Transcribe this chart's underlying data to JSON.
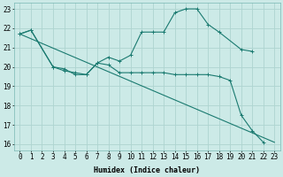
{
  "xlabel": "Humidex (Indice chaleur)",
  "xlim": [
    -0.5,
    23.5
  ],
  "ylim": [
    15.7,
    23.3
  ],
  "yticks": [
    16,
    17,
    18,
    19,
    20,
    21,
    22,
    23
  ],
  "xticks": [
    0,
    1,
    2,
    3,
    4,
    5,
    6,
    7,
    8,
    9,
    10,
    11,
    12,
    13,
    14,
    15,
    16,
    17,
    18,
    19,
    20,
    21,
    22,
    23
  ],
  "bg_color": "#cceae7",
  "grid_color": "#aed4d0",
  "line_color": "#1a7a70",
  "line1_x": [
    0,
    1,
    3,
    4,
    5,
    6,
    7,
    8,
    9,
    10,
    11,
    12,
    13,
    14,
    15,
    16,
    17,
    18,
    19,
    20,
    21,
    22
  ],
  "line1_y": [
    21.7,
    21.9,
    20.0,
    19.8,
    19.7,
    19.6,
    20.2,
    20.1,
    19.7,
    19.7,
    19.7,
    19.7,
    19.7,
    19.6,
    19.6,
    19.6,
    19.6,
    19.5,
    19.3,
    17.5,
    16.7,
    16.1
  ],
  "line2_x": [
    0,
    1,
    3,
    4,
    5,
    6,
    7,
    8,
    9,
    10,
    11,
    12,
    13,
    14,
    15,
    16,
    17,
    18,
    20,
    21
  ],
  "line2_y": [
    21.7,
    21.9,
    20.0,
    19.9,
    19.6,
    19.6,
    20.2,
    20.5,
    20.3,
    20.6,
    21.8,
    21.8,
    21.8,
    22.8,
    23.0,
    23.0,
    22.2,
    21.8,
    20.9,
    20.8
  ],
  "line3_x": [
    0,
    23
  ],
  "line3_y": [
    21.7,
    16.1
  ],
  "fontsize_axis": 6,
  "fontsize_ticks": 5.5
}
